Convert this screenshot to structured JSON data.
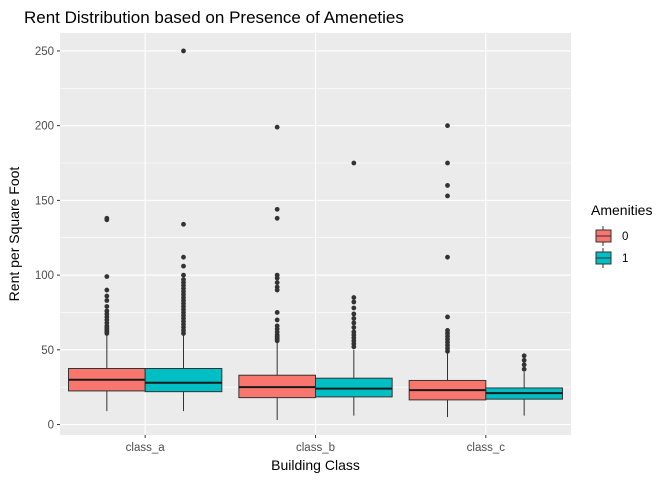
{
  "chart_data": {
    "type": "box",
    "title": "Rent Distribution based on Presence of Ameneties",
    "xlabel": "Building Class",
    "ylabel": "Rent per Square Foot",
    "categories": [
      "class_a",
      "class_b",
      "class_c"
    ],
    "y_ticks": [
      0,
      50,
      100,
      150,
      200,
      250
    ],
    "ylim": [
      -7,
      262
    ],
    "grid": true,
    "legend": {
      "title": "Amenities",
      "position": "right",
      "entries": [
        {
          "label": "0",
          "color": "#F8766D"
        },
        {
          "label": "1",
          "color": "#00BFC4"
        }
      ]
    },
    "series": [
      {
        "name": "0",
        "color": "#F8766D",
        "boxes": [
          {
            "category": "class_a",
            "whisker_low": 9,
            "q1": 22.5,
            "median": 30,
            "q3": 37.5,
            "whisker_high": 60,
            "outliers": [
              138,
              137,
              99,
              90,
              86,
              83,
              79,
              76,
              74,
              72,
              70,
              68,
              66,
              65,
              64,
              63,
              62,
              61
            ]
          },
          {
            "category": "class_b",
            "whisker_low": 3,
            "q1": 18,
            "median": 25,
            "q3": 33,
            "whisker_high": 55,
            "outliers": [
              199,
              144,
              138,
              100,
              98,
              95,
              92,
              90,
              75,
              70,
              66,
              64,
              62,
              60,
              59,
              58,
              57,
              56
            ]
          },
          {
            "category": "class_c",
            "whisker_low": 5,
            "q1": 16.5,
            "median": 23,
            "q3": 29.5,
            "whisker_high": 48,
            "outliers": [
              200,
              175,
              160,
              153,
              112,
              72,
              63,
              61,
              59,
              57,
              55,
              53,
              51,
              49
            ]
          }
        ]
      },
      {
        "name": "1",
        "color": "#00BFC4",
        "boxes": [
          {
            "category": "class_a",
            "whisker_low": 9,
            "q1": 22,
            "median": 28,
            "q3": 37.5,
            "whisker_high": 60,
            "outliers": [
              250,
              134,
              112,
              106,
              100,
              97,
              95,
              93,
              91,
              89,
              87,
              85,
              83,
              81,
              79,
              77,
              75,
              73,
              71,
              69,
              67,
              65,
              63,
              61
            ]
          },
          {
            "category": "class_b",
            "whisker_low": 6,
            "q1": 18.5,
            "median": 24,
            "q3": 31,
            "whisker_high": 50,
            "outliers": [
              175,
              85,
              82,
              78,
              74,
              71,
              68,
              65,
              62,
              60,
              58,
              56,
              54,
              52
            ]
          },
          {
            "category": "class_c",
            "whisker_low": 6,
            "q1": 17,
            "median": 21,
            "q3": 24.5,
            "whisker_high": 35,
            "outliers": [
              46,
              43,
              40,
              37
            ]
          }
        ]
      }
    ]
  }
}
